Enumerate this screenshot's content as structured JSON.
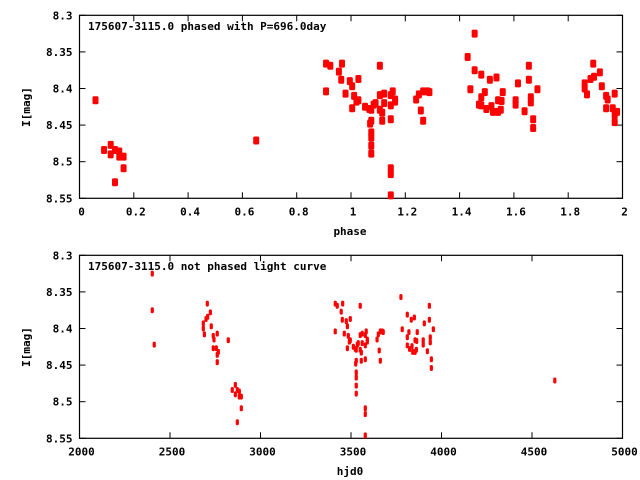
{
  "chart_data": [
    {
      "type": "scatter",
      "title": "175607-3115.0 phased with P=696.0day",
      "xlabel": "phase",
      "ylabel": "I[mag]",
      "xlim": [
        0,
        2
      ],
      "ylim": [
        8.3,
        8.55
      ],
      "y_inverted": true,
      "xticks": [
        "0",
        "0.2",
        "0.4",
        "0.6",
        "0.8",
        "1",
        "1.2",
        "1.4",
        "1.6",
        "1.8",
        "2"
      ],
      "yticks": [
        "8.3",
        "8.35",
        "8.4",
        "8.45",
        "8.5",
        "8.55"
      ],
      "period": 696.0,
      "epoch_hjd0": 1389,
      "phase_cycles": 2,
      "grid": false,
      "color": "#ff0000"
    },
    {
      "type": "scatter",
      "title": "175607-3115.0 not phased light curve",
      "xlabel": "hjd0",
      "ylabel": "I[mag]",
      "xlim": [
        2000,
        5000
      ],
      "ylim": [
        8.3,
        8.55
      ],
      "y_inverted": true,
      "xticks": [
        "2000",
        "2500",
        "3000",
        "3500",
        "4000",
        "4500",
        "5000"
      ],
      "yticks": [
        "8.3",
        "8.35",
        "8.4",
        "8.45",
        "8.5",
        "8.55"
      ],
      "grid": false,
      "color": "#ff0000",
      "points": [
        [
          2402,
          8.325
        ],
        [
          2402,
          8.375
        ],
        [
          2413,
          8.422
        ],
        [
          2706,
          8.366
        ],
        [
          2723,
          8.378
        ],
        [
          2708,
          8.384
        ],
        [
          2699,
          8.387
        ],
        [
          2684,
          8.393
        ],
        [
          2684,
          8.4
        ],
        [
          2690,
          8.408
        ],
        [
          2728,
          8.397
        ],
        [
          2739,
          8.41
        ],
        [
          2743,
          8.415
        ],
        [
          2761,
          8.407
        ],
        [
          2822,
          8.416
        ],
        [
          2739,
          8.427
        ],
        [
          2756,
          8.427
        ],
        [
          2767,
          8.432
        ],
        [
          2761,
          8.436
        ],
        [
          2761,
          8.446
        ],
        [
          2861,
          8.477
        ],
        [
          2844,
          8.484
        ],
        [
          2872,
          8.484
        ],
        [
          2883,
          8.486
        ],
        [
          2861,
          8.49
        ],
        [
          2883,
          8.493
        ],
        [
          2894,
          8.493
        ],
        [
          2894,
          8.509
        ],
        [
          2872,
          8.528
        ],
        [
          3413,
          8.366
        ],
        [
          3424,
          8.369
        ],
        [
          3454,
          8.366
        ],
        [
          3446,
          8.377
        ],
        [
          3413,
          8.404
        ],
        [
          3452,
          8.388
        ],
        [
          3474,
          8.39
        ],
        [
          3496,
          8.387
        ],
        [
          3480,
          8.397
        ],
        [
          3463,
          8.407
        ],
        [
          3485,
          8.41
        ],
        [
          3496,
          8.416
        ],
        [
          3491,
          8.418
        ],
        [
          3480,
          8.427
        ],
        [
          3551,
          8.369
        ],
        [
          3513,
          8.425
        ],
        [
          3524,
          8.428
        ],
        [
          3535,
          8.422
        ],
        [
          3540,
          8.42
        ],
        [
          3529,
          8.429
        ],
        [
          3526,
          8.448
        ],
        [
          3529,
          8.444
        ],
        [
          3529,
          8.46
        ],
        [
          3529,
          8.467
        ],
        [
          3529,
          8.478
        ],
        [
          3529,
          8.489
        ],
        [
          3551,
          8.409
        ],
        [
          3562,
          8.407
        ],
        [
          3562,
          8.42
        ],
        [
          3551,
          8.429
        ],
        [
          3557,
          8.433
        ],
        [
          3557,
          8.444
        ],
        [
          3579,
          8.409
        ],
        [
          3584,
          8.404
        ],
        [
          3590,
          8.415
        ],
        [
          3590,
          8.418
        ],
        [
          3579,
          8.423
        ],
        [
          3579,
          8.442
        ],
        [
          3579,
          8.509
        ],
        [
          3579,
          8.517
        ],
        [
          3579,
          8.546
        ],
        [
          3644,
          8.415
        ],
        [
          3651,
          8.408
        ],
        [
          3662,
          8.404
        ],
        [
          3673,
          8.404
        ],
        [
          3678,
          8.405
        ],
        [
          3656,
          8.43
        ],
        [
          3662,
          8.444
        ],
        [
          3776,
          8.357
        ],
        [
          3783,
          8.401
        ],
        [
          3811,
          8.381
        ],
        [
          3820,
          8.405
        ],
        [
          3811,
          8.412
        ],
        [
          3811,
          8.423
        ],
        [
          3824,
          8.428
        ],
        [
          3833,
          8.388
        ],
        [
          3850,
          8.385
        ],
        [
          3841,
          8.432
        ],
        [
          3854,
          8.432
        ],
        [
          3861,
          8.429
        ],
        [
          3854,
          8.416
        ],
        [
          3863,
          8.417
        ],
        [
          3866,
          8.405
        ],
        [
          3837,
          8.424
        ],
        [
          3933,
          8.369
        ],
        [
          3905,
          8.393
        ],
        [
          3933,
          8.388
        ],
        [
          3955,
          8.401
        ],
        [
          3899,
          8.416
        ],
        [
          3899,
          8.422
        ],
        [
          3938,
          8.412
        ],
        [
          3938,
          8.419
        ],
        [
          3922,
          8.431
        ],
        [
          3944,
          8.442
        ],
        [
          3944,
          8.454
        ],
        [
          4626,
          8.471
        ]
      ]
    }
  ]
}
